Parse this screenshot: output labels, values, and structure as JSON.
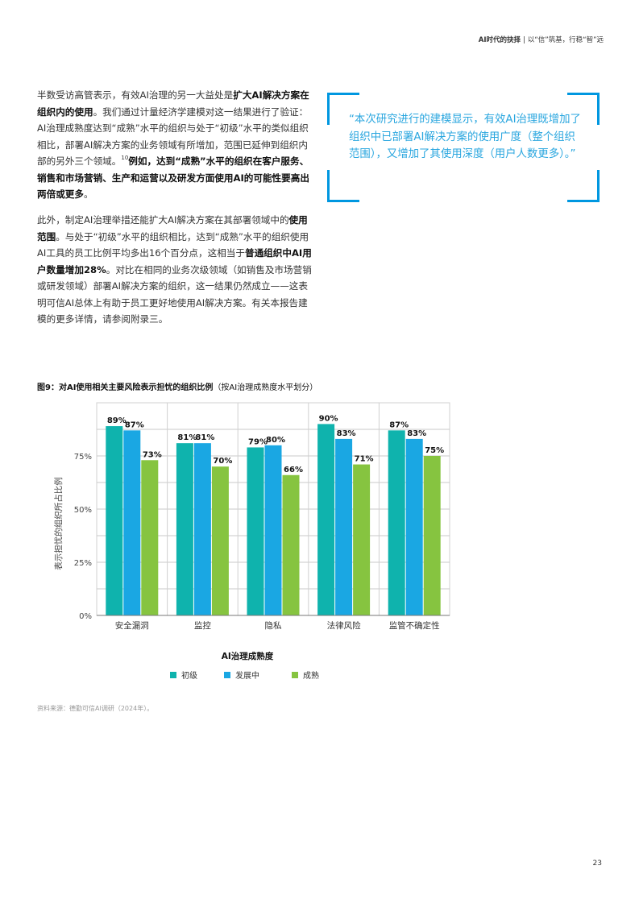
{
  "header": {
    "report_title": "AI时代的抉择",
    "divider": "|",
    "subtitle": "以“信”筑基，行稳“智”远"
  },
  "para1": {
    "t1": "半数受访高管表示，有效AI治理的另一大益处是",
    "b1": "扩大AI解决方案在组织内的使用",
    "t2": "。我们通过计量经济学建模对这一结果进行了验证：AI治理成熟度达到“成熟”水平的组织与处于“初级”水平的类似组织相比，部署AI解决方案的业务领域有所增加，范围已延伸到组织内部的另外三个领域。",
    "sup": "10",
    "b2": "例如，达到“成熟”水平的组织在客户服务、销售和市场营销、生产和运营以及研发方面使用AI的可能性要高出两倍或更多",
    "t3": "。"
  },
  "para2": {
    "t1": "此外，制定AI治理举措还能扩大AI解决方案在其部署领域中的",
    "b1": "使用范围",
    "t2": "。与处于“初级”水平的组织相比，达到“成熟”水平的组织使用AI工具的员工比例平均多出16个百分点，这相当于",
    "b2": "普通组织中AI用户数量增加28%",
    "t3": "。对比在相同的业务次级领域（如销售及市场营销或研发领域）部署AI解决方案的组织，这一结果仍然成立——这表明可信AI总体上有助于员工更好地使用AI解决方案。有关本报告建模的更多详情，请参阅附录三。"
  },
  "quote": {
    "text": "“本次研究进行的建模显示，有效AI治理既增加了组织中已部署AI解决方案的使用广度（整个组织范围），又增加了其使用深度（用户人数更多）。”"
  },
  "figure": {
    "label": "图9：",
    "title": "对AI使用相关主要风险表示担忧的组织比例",
    "note": "（按AI治理成熟度水平划分）"
  },
  "chart_data": {
    "type": "bar",
    "categories": [
      "安全漏洞",
      "监控",
      "隐私",
      "法律风险",
      "监管不确定性"
    ],
    "series": [
      {
        "name": "初级",
        "values": [
          89,
          81,
          79,
          90,
          87
        ],
        "color": "#0fb3ad"
      },
      {
        "name": "发展中",
        "values": [
          87,
          81,
          80,
          83,
          83
        ],
        "color": "#1aa7e3"
      },
      {
        "name": "成熟",
        "values": [
          73,
          70,
          66,
          71,
          75
        ],
        "color": "#86c440"
      }
    ],
    "y_ticks": [
      "0%",
      "25%",
      "50%",
      "75%"
    ],
    "ylabel": "表示担忧的组织所占比例",
    "xlabel": "AI治理成熟度",
    "ylim": [
      0,
      100
    ],
    "value_suffix": "%",
    "grid": true,
    "legend": "bottom-center"
  },
  "source": "资料来源：德勤可信AI调研（2024年）。",
  "page_number": "23"
}
